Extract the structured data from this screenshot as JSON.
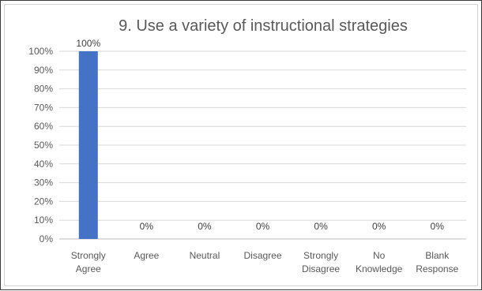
{
  "chart_data": {
    "type": "bar",
    "title": "9.   Use a variety of instructional strategies",
    "categories": [
      [
        "Strongly",
        "Agree"
      ],
      [
        "Agree"
      ],
      [
        "Neutral"
      ],
      [
        "Disagree"
      ],
      [
        "Strongly",
        "Disagree"
      ],
      [
        "No",
        "Knowledge"
      ],
      [
        "Blank",
        "Response"
      ]
    ],
    "values": [
      100,
      0,
      0,
      0,
      0,
      0,
      0
    ],
    "data_labels": [
      "100%",
      "0%",
      "0%",
      "0%",
      "0%",
      "0%",
      "0%"
    ],
    "y_ticks": [
      "0%",
      "10%",
      "20%",
      "30%",
      "40%",
      "50%",
      "60%",
      "70%",
      "80%",
      "90%",
      "100%"
    ],
    "ylim": [
      0,
      100
    ],
    "grid": true,
    "legend": "none",
    "bar_color": "#4472c4",
    "grid_color": "#d9d9d9"
  }
}
